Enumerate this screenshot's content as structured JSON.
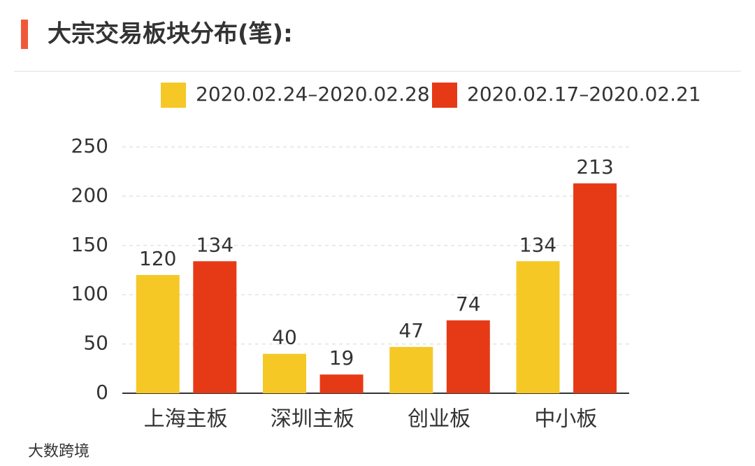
{
  "chart_data": {
    "type": "bar",
    "title": "大宗交易板块分布(笔):",
    "categories": [
      "上海主板",
      "深圳主板",
      "创业板",
      "中小板"
    ],
    "series": [
      {
        "name": "2020.02.24–2020.02.28",
        "color": "#f5c826",
        "values": [
          120,
          40,
          47,
          134
        ]
      },
      {
        "name": "2020.02.17–2020.02.21",
        "color": "#e63a17",
        "values": [
          134,
          19,
          74,
          213
        ]
      }
    ],
    "ylim": [
      0,
      250
    ],
    "yticks": [
      0,
      50,
      100,
      150,
      200,
      250
    ],
    "grid": true,
    "legend": "top",
    "watermark": "大数跨境"
  }
}
